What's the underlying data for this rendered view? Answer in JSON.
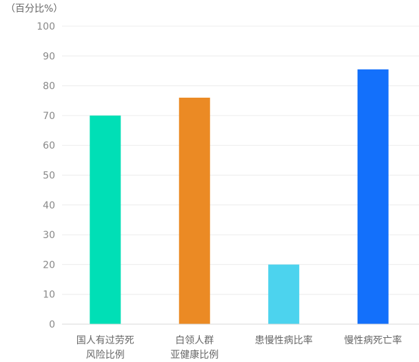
{
  "chart_data": {
    "type": "bar",
    "unit_label": "（百分比%）",
    "categories": [
      [
        "国人有过劳死",
        "风险比例"
      ],
      [
        "白领人群",
        "亚健康比例"
      ],
      [
        "患慢性病比率"
      ],
      [
        "慢性病死亡率"
      ]
    ],
    "values": [
      70,
      76,
      20,
      85.5
    ],
    "colors": [
      "#00dfb6",
      "#eb8a24",
      "#4cd3ee",
      "#1370fb"
    ],
    "ylim": [
      0,
      100
    ],
    "yticks": [
      0,
      10,
      20,
      30,
      40,
      50,
      60,
      70,
      80,
      90,
      100
    ],
    "grid": true,
    "title": "",
    "xlabel": "",
    "ylabel": ""
  }
}
